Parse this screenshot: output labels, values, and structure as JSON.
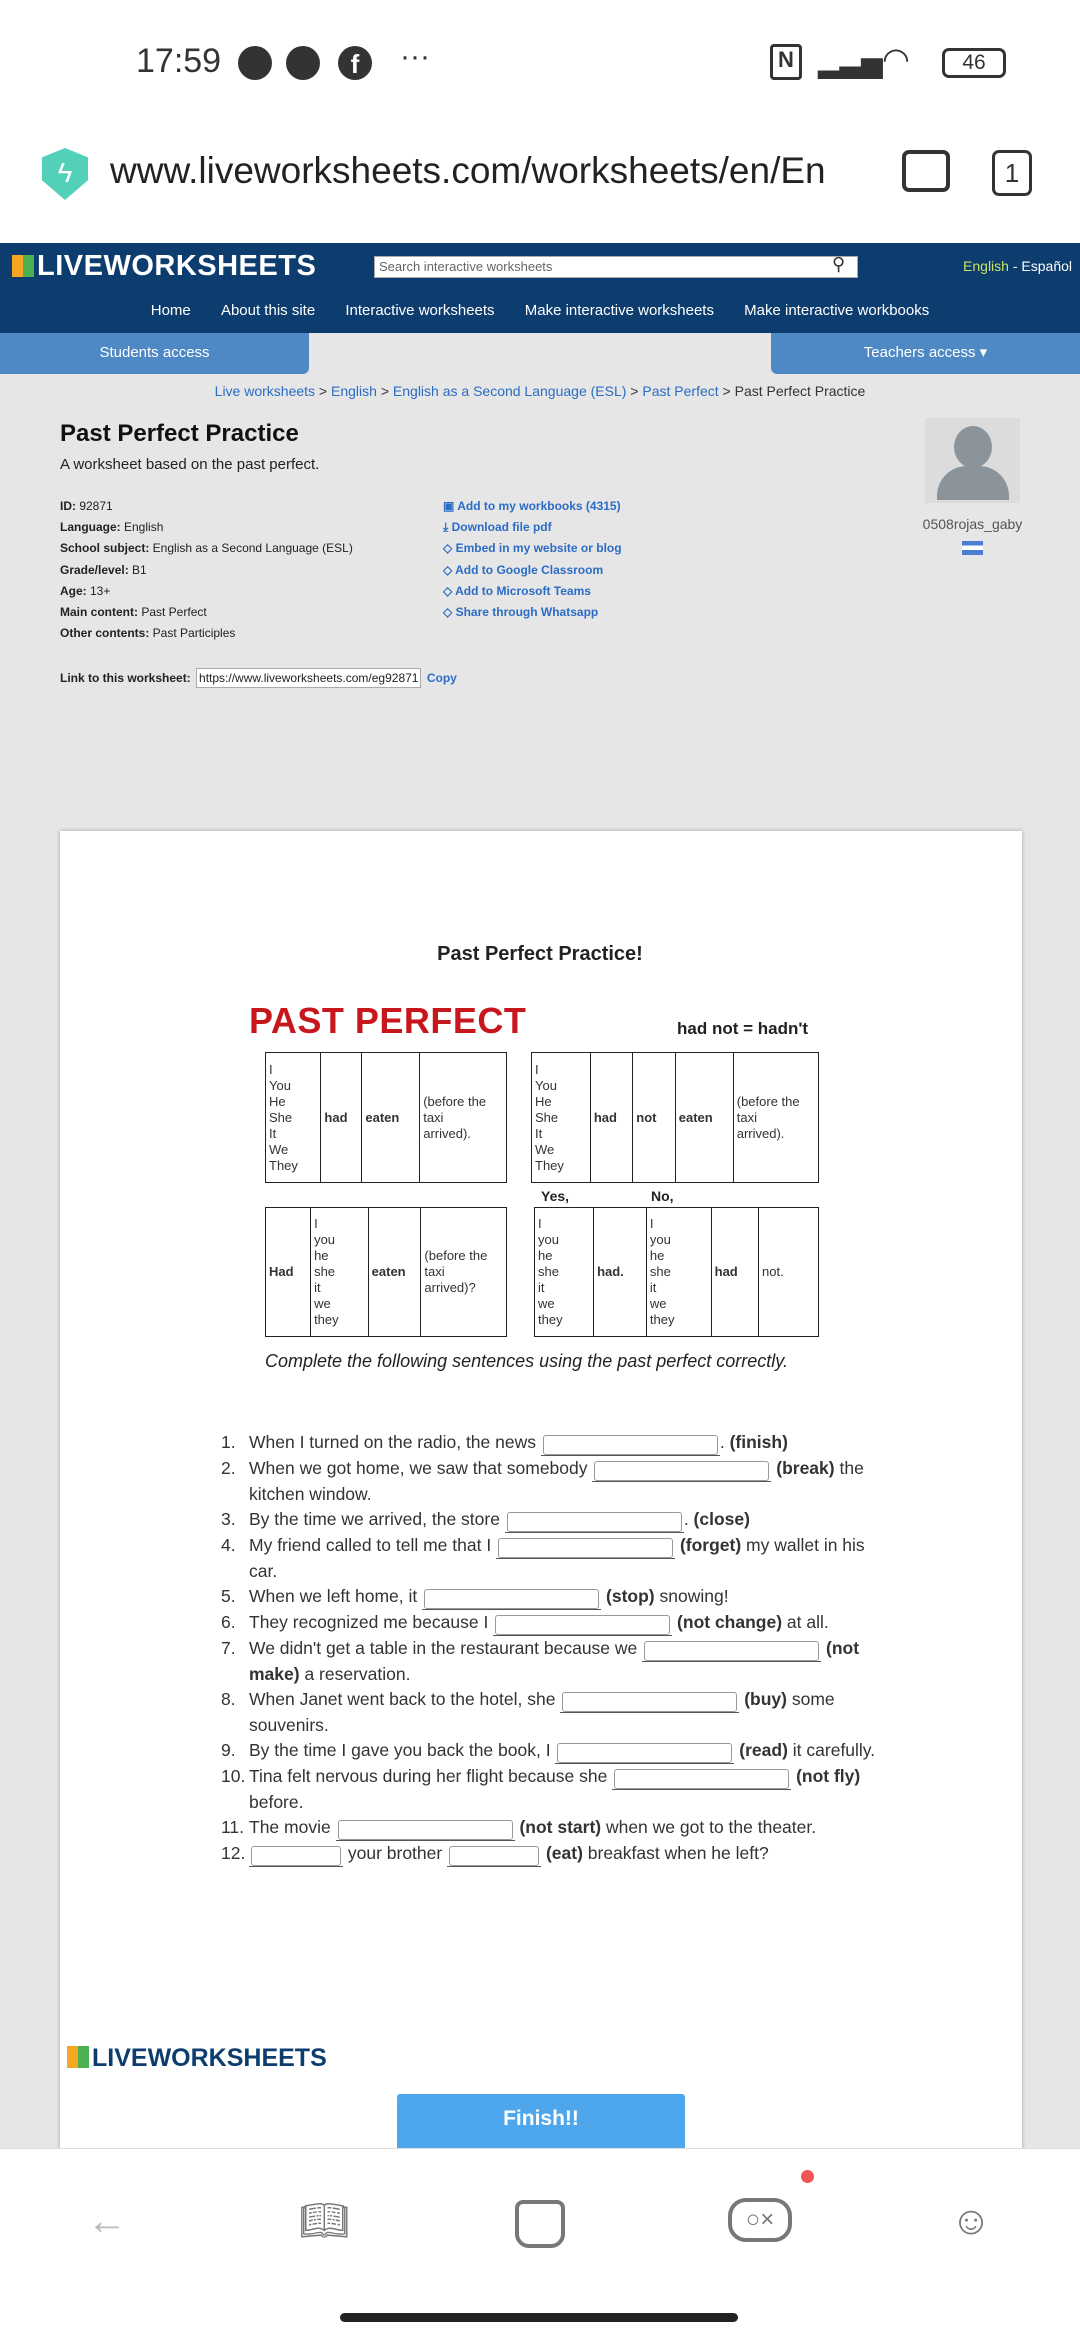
{
  "status": {
    "time": "17:59",
    "battery": "46"
  },
  "browser": {
    "url": "www.liveworksheets.com/worksheets/en/En",
    "tabs_count": "1"
  },
  "site": {
    "logo": "LIVEWORKSHEETS",
    "search_placeholder": "Search interactive worksheets",
    "lang_en": "English",
    "lang_sep": " - ",
    "lang_es": "Español",
    "nav": [
      "Home",
      "About this site",
      "Interactive worksheets",
      "Make interactive worksheets",
      "Make interactive workbooks"
    ],
    "students": "Students access",
    "teachers": "Teachers access ▾"
  },
  "breadcrumb": [
    "Live worksheets",
    "English",
    "English as a Second Language (ESL)",
    "Past Perfect",
    "Past Perfect Practice"
  ],
  "worksheet_info": {
    "title": "Past Perfect Practice",
    "description": "A worksheet based on the past perfect.",
    "meta": [
      {
        "k": "ID:",
        "v": " 92871"
      },
      {
        "k": "Language:",
        "v": " English"
      },
      {
        "k": "School subject:",
        "v": " English as a Second Language (ESL)"
      },
      {
        "k": "Grade/level:",
        "v": " B1"
      },
      {
        "k": "Age:",
        "v": " 13+"
      },
      {
        "k": "Main content:",
        "v": " Past Perfect"
      },
      {
        "k": "Other contents:",
        "v": " Past Participles"
      }
    ],
    "actions": [
      "Add to my workbooks (4315)",
      "Download file pdf",
      "Embed in my website or blog",
      "Add to Google Classroom",
      "Add to Microsoft Teams",
      "Share through Whatsapp"
    ],
    "author": "0508rojas_gaby",
    "link_label": "Link to this worksheet:",
    "link_value": "https://www.liveworksheets.com/eg92871",
    "copy": "Copy"
  },
  "sheet": {
    "title": "Past Perfect Practice!",
    "heading": "PAST PERFECT",
    "note": "had not = hadn't",
    "yes": "Yes,",
    "no": "No,",
    "tables": [
      [
        "I\nYou\nHe\nShe\nIt\nWe\nThey",
        "had",
        "eaten",
        "(before the\ntaxi\narrived)."
      ],
      [
        "I\nYou\nHe\nShe\nIt\nWe\nThey",
        "had",
        "not",
        "eaten",
        "(before the\ntaxi\narrived)."
      ],
      [
        "Had",
        "I\nyou\nhe\nshe\nit\nwe\nthey",
        "eaten",
        "(before the\ntaxi\narrived)?"
      ],
      [
        "I\nyou\nhe\nshe\nit\nwe\nthey",
        "had.",
        "I\nyou\nhe\nshe\nit\nwe\nthey",
        "had",
        "not."
      ]
    ],
    "instruction": "Complete the following sentences using the past perfect correctly.",
    "sentences": [
      {
        "n": "1.",
        "parts": [
          {
            "t": "When I turned on the radio, the news "
          },
          {
            "i": ""
          },
          {
            "t": ". "
          },
          {
            "b": "(finish)"
          }
        ]
      },
      {
        "n": "2.",
        "parts": [
          {
            "t": "When we got home, we saw that somebody "
          },
          {
            "i": ""
          },
          {
            "t": " "
          },
          {
            "b": "(break)"
          },
          {
            "t": " the kitchen window."
          }
        ]
      },
      {
        "n": "3.",
        "parts": [
          {
            "t": "By the time we arrived, the store "
          },
          {
            "i": ""
          },
          {
            "t": ". "
          },
          {
            "b": "(close)"
          }
        ]
      },
      {
        "n": "4.",
        "parts": [
          {
            "t": "My friend called to tell me that I "
          },
          {
            "i": ""
          },
          {
            "t": " "
          },
          {
            "b": "(forget)"
          },
          {
            "t": " my wallet in his car."
          }
        ]
      },
      {
        "n": "5.",
        "parts": [
          {
            "t": "When we left home, it "
          },
          {
            "i": ""
          },
          {
            "t": " "
          },
          {
            "b": "(stop)"
          },
          {
            "t": " snowing!"
          }
        ]
      },
      {
        "n": "6.",
        "parts": [
          {
            "t": "They recognized me because I "
          },
          {
            "i": ""
          },
          {
            "t": " "
          },
          {
            "b": "(not change)"
          },
          {
            "t": " at all."
          }
        ]
      },
      {
        "n": "7.",
        "parts": [
          {
            "t": "We didn't get a table in the restaurant because we "
          },
          {
            "i": ""
          },
          {
            "t": " "
          },
          {
            "b": "(not make)"
          },
          {
            "t": " a reservation."
          }
        ]
      },
      {
        "n": "8.",
        "parts": [
          {
            "t": "When Janet went back to the hotel, she "
          },
          {
            "i": ""
          },
          {
            "t": " "
          },
          {
            "b": "(buy)"
          },
          {
            "t": " some souvenirs."
          }
        ]
      },
      {
        "n": "9.",
        "parts": [
          {
            "t": "By the time I gave you back the book, I "
          },
          {
            "i": ""
          },
          {
            "t": " "
          },
          {
            "b": "(read)"
          },
          {
            "t": " it carefully."
          }
        ]
      },
      {
        "n": "10.",
        "parts": [
          {
            "t": "Tina felt nervous during her flight because she "
          },
          {
            "i": ""
          },
          {
            "t": " "
          },
          {
            "b": "(not fly)"
          },
          {
            "t": " before."
          }
        ]
      },
      {
        "n": "11.",
        "parts": [
          {
            "t": "The movie "
          },
          {
            "i": ""
          },
          {
            "t": " "
          },
          {
            "b": "(not start)"
          },
          {
            "t": " when we got to the theater."
          }
        ]
      },
      {
        "n": "12.",
        "parts": [
          {
            "i": ""
          },
          {
            "t": " your brother "
          },
          {
            "i": ""
          },
          {
            "t": " "
          },
          {
            "b": "(eat)"
          },
          {
            "t": " breakfast when he left?"
          }
        ]
      }
    ],
    "footer_logo": "LIVEWORKSHEETS",
    "finish": "Finish!!"
  },
  "colors": {
    "header": "#0d3d6e",
    "tab": "#4f89c5",
    "link": "#2b6cc4",
    "heading": "#c8161d",
    "finish": "#4ea6ec"
  }
}
